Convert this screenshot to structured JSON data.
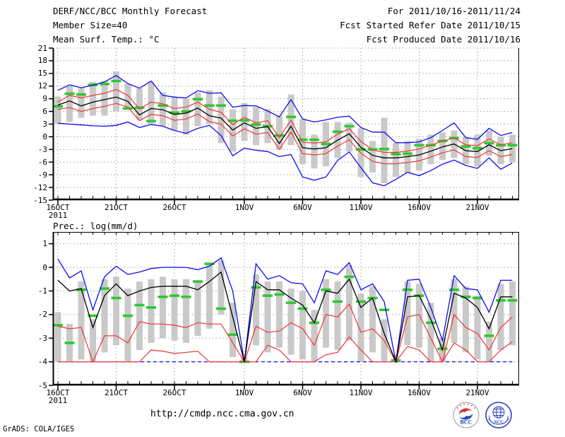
{
  "header": {
    "left": [
      "DERF/NCC/BCC Monthly Forecast",
      "Member Size=40"
    ],
    "right": [
      "For 2011/10/16-2011/11/24",
      "Fcst Started Refer Date 2011/10/15",
      "Fcst Produced Date 2011/10/16"
    ]
  },
  "footer": {
    "url": "http://cmdp.ncc.cma.gov.cn",
    "credit": "GrADS: COLA/IGES",
    "bcc_label": "BCC",
    "ncc_label": "NCC"
  },
  "colors": {
    "blue": "#0d0df0",
    "red": "#f23535",
    "green": "#2fc82f",
    "black": "#000000",
    "bar": "#c9c9c9",
    "grid": "#9b9b9b"
  },
  "chart_data": [
    {
      "type": "line",
      "title": "Mean Surf. Temp.: °C",
      "ylim": [
        -15,
        21
      ],
      "grid": "dotted",
      "yticks": [
        "21",
        "18",
        "15",
        "12",
        "9",
        "6",
        "3",
        "0",
        "-3",
        "-6",
        "-9",
        "-12",
        "-15"
      ],
      "xticks": [
        {
          "label": "16OCT",
          "sub": "2011",
          "day": 1
        },
        {
          "label": "21OCT",
          "day": 6
        },
        {
          "label": "26OCT",
          "day": 11
        },
        {
          "label": "1NOV",
          "day": 17
        },
        {
          "label": "6NOV",
          "day": 22
        },
        {
          "label": "11NOV",
          "day": 27
        },
        {
          "label": "16NOV",
          "day": 32
        },
        {
          "label": "21NOV",
          "day": 37
        }
      ],
      "n_days": 40,
      "series": {
        "blue_upper": [
          11.0,
          12.3,
          11.6,
          12.2,
          13.0,
          14.5,
          12.6,
          11.5,
          13.2,
          9.8,
          9.4,
          9.2,
          10.9,
          10.3,
          10.4,
          7.0,
          7.4,
          7.3,
          6.1,
          4.7,
          8.8,
          4.2,
          3.5,
          4.0,
          4.6,
          4.9,
          2.2,
          1.1,
          1.1,
          -1.4,
          -1.4,
          -1.2,
          -0.2,
          1.5,
          3.3,
          -0.2,
          -0.6,
          2.0,
          0.3,
          1.0
        ],
        "red_upper": [
          8.2,
          9.8,
          9.2,
          9.8,
          10.3,
          11.2,
          9.8,
          6.6,
          8.2,
          7.8,
          6.7,
          7.0,
          8.2,
          6.5,
          5.8,
          2.9,
          4.6,
          3.3,
          3.8,
          -0.2,
          3.9,
          -1.3,
          -1.5,
          -1.2,
          0.6,
          1.9,
          -1.1,
          -3.1,
          -3.7,
          -3.7,
          -3.4,
          -2.9,
          -2.0,
          -1.0,
          -0.3,
          -1.9,
          -2.1,
          -0.5,
          -1.9,
          -1.4
        ],
        "mean_black": [
          7.5,
          8.5,
          7.3,
          8.2,
          8.8,
          9.4,
          8.4,
          5.2,
          6.7,
          6.4,
          5.3,
          5.6,
          6.8,
          5.0,
          4.4,
          1.6,
          3.3,
          2.0,
          2.4,
          -1.6,
          2.5,
          -2.6,
          -2.9,
          -2.6,
          -0.8,
          0.7,
          -2.5,
          -4.4,
          -5.0,
          -5.0,
          -4.7,
          -4.3,
          -3.4,
          -2.4,
          -1.7,
          -3.3,
          -3.5,
          -1.9,
          -3.3,
          -2.8
        ],
        "red_lower": [
          6.5,
          6.9,
          6.0,
          6.7,
          7.2,
          7.9,
          7.0,
          3.8,
          5.3,
          5.0,
          3.9,
          4.2,
          5.4,
          3.6,
          3.0,
          0.2,
          1.9,
          0.6,
          1.0,
          -3.0,
          1.1,
          -4.0,
          -4.3,
          -4.0,
          -2.2,
          -0.7,
          -3.9,
          -5.8,
          -6.4,
          -6.4,
          -6.1,
          -5.7,
          -4.8,
          -3.8,
          -3.1,
          -4.7,
          -4.9,
          -3.3,
          -4.7,
          -4.2
        ],
        "blue_lower": [
          3.2,
          3.0,
          2.8,
          2.6,
          2.5,
          2.7,
          3.5,
          2.2,
          2.9,
          2.5,
          1.5,
          0.8,
          2.0,
          2.7,
          0.3,
          -4.5,
          -2.7,
          -3.2,
          -3.5,
          -4.7,
          -4.2,
          -9.5,
          -10.3,
          -9.5,
          -5.6,
          -3.6,
          -7.3,
          -10.9,
          -11.6,
          -10.1,
          -8.4,
          -9.2,
          -8.0,
          -6.5,
          -5.5,
          -6.8,
          -7.5,
          -5.0,
          -7.7,
          -6.2
        ],
        "green_marks": [
          7.2,
          10.2,
          10.0,
          12.3,
          12.5,
          13.2,
          6.7,
          6.9,
          3.7,
          7.4,
          5.7,
          6.0,
          8.9,
          7.4,
          7.4,
          3.8,
          3.9,
          2.9,
          2.5,
          0.3,
          4.7,
          -0.7,
          -0.7,
          -1.7,
          1.2,
          2.5,
          -3.0,
          -3.0,
          -2.9,
          -4.1,
          -4.0,
          -2.0,
          -2.0,
          -1.0,
          -0.3,
          -2.3,
          -2.7,
          -1.5,
          -2.0,
          -2.0
        ],
        "bar_high": [
          9.5,
          12.0,
          11.5,
          13.0,
          13.2,
          15.5,
          12.5,
          11.5,
          13.0,
          10.5,
          9.5,
          9.0,
          10.5,
          11.0,
          9.5,
          6.5,
          8.0,
          7.0,
          6.5,
          5.0,
          10.0,
          4.2,
          0.5,
          3.5,
          3.5,
          3.3,
          2.0,
          -1.0,
          4.5,
          -1.5,
          -1.0,
          -0.5,
          0.5,
          1.0,
          1.5,
          0.0,
          0.5,
          1.5,
          0.0,
          0.5
        ],
        "bar_low": [
          3.0,
          3.5,
          4.5,
          5.0,
          5.0,
          6.0,
          6.5,
          4.0,
          3.0,
          2.5,
          1.5,
          0.5,
          2.5,
          3.0,
          -1.5,
          -3.5,
          -1.0,
          -2.0,
          -1.5,
          -3.0,
          -2.0,
          -6.5,
          -7.5,
          -7.0,
          -5.0,
          -3.5,
          -9.5,
          -8.5,
          -11.0,
          -9.5,
          -8.5,
          -8.0,
          -6.5,
          -5.5,
          -5.0,
          -6.5,
          -7.0,
          -4.5,
          -6.5,
          -6.0
        ]
      }
    },
    {
      "type": "line",
      "title": "Prec.: log(mm/d)",
      "ylim": [
        -5,
        1.5
      ],
      "grid": "dotted",
      "yticks": [
        "1",
        "0",
        "-1",
        "-2",
        "-3",
        "-4",
        "-5"
      ],
      "xticks": [
        {
          "label": "16OCT",
          "sub": "2011",
          "day": 1
        },
        {
          "label": "21OCT",
          "day": 6
        },
        {
          "label": "26OCT",
          "day": 11
        },
        {
          "label": "1NOV",
          "day": 17
        },
        {
          "label": "6NOV",
          "day": 22
        },
        {
          "label": "11NOV",
          "day": 27
        },
        {
          "label": "16NOV",
          "day": 32
        },
        {
          "label": "21NOV",
          "day": 37
        }
      ],
      "n_days": 40,
      "series": {
        "blue_upper": [
          0.35,
          -0.45,
          -0.15,
          -1.8,
          -0.4,
          0.05,
          -0.3,
          -0.2,
          -0.05,
          0.0,
          0.0,
          0.0,
          -0.1,
          0.05,
          0.4,
          -1.0,
          -4.0,
          0.15,
          -0.5,
          -0.35,
          -0.65,
          -0.7,
          -1.5,
          -0.15,
          -0.3,
          0.2,
          -0.95,
          -0.7,
          -1.45,
          -4.0,
          -0.55,
          -0.5,
          -1.7,
          -3.1,
          -0.35,
          -0.9,
          -0.95,
          -1.9,
          -0.55,
          -0.55
        ],
        "mean_black": [
          -0.55,
          -1.0,
          -0.9,
          -2.55,
          -1.2,
          -0.7,
          -1.2,
          -1.0,
          -0.85,
          -0.8,
          -0.8,
          -0.8,
          -0.95,
          -0.6,
          -0.2,
          -2.1,
          -4.0,
          -0.6,
          -0.95,
          -0.95,
          -1.3,
          -1.6,
          -2.35,
          -1.0,
          -1.1,
          -0.5,
          -1.7,
          -1.3,
          -2.8,
          -4.0,
          -1.25,
          -1.2,
          -2.2,
          -3.5,
          -1.1,
          -1.3,
          -1.7,
          -2.6,
          -1.25,
          -1.25
        ],
        "red_upper": [
          -2.5,
          -2.6,
          -2.55,
          -4.0,
          -2.9,
          -2.9,
          -3.2,
          -2.3,
          -2.4,
          -2.4,
          -2.45,
          -2.55,
          -2.35,
          -2.4,
          -2.4,
          -3.2,
          -4.0,
          -2.5,
          -2.75,
          -2.7,
          -2.35,
          -2.6,
          -3.3,
          -2.0,
          -2.1,
          -1.55,
          -2.75,
          -2.6,
          -3.1,
          -4.0,
          -2.1,
          -2.0,
          -3.0,
          -4.0,
          -2.0,
          -2.55,
          -2.8,
          -3.5,
          -2.55,
          -2.1
        ],
        "red_lower": [
          -4,
          -4,
          -4,
          -4,
          -4,
          -4,
          -4,
          -4,
          -3.5,
          -3.55,
          -3.65,
          -3.6,
          -3.55,
          -4,
          -4,
          -4,
          -4,
          -4,
          -3.3,
          -3.5,
          -4,
          -4,
          -4,
          -3.7,
          -3.6,
          -2.95,
          -3.5,
          -4,
          -4,
          -4,
          -3.35,
          -3.5,
          -4,
          -4,
          -3.2,
          -3.5,
          -4,
          -4,
          -3.5,
          -3.15
        ],
        "blue_lower": [
          -4,
          -4,
          -4,
          -4,
          -4,
          -4,
          -4,
          -4,
          -4,
          -4,
          -4,
          -4,
          -4,
          -4,
          -4,
          -4,
          -4,
          -4,
          -4,
          -4,
          -4,
          -4,
          -4,
          -4,
          -4,
          -4,
          -4,
          -4,
          -4,
          -4,
          -4,
          -4,
          -4,
          -4,
          -4,
          -4,
          -4,
          -4,
          -4,
          -4
        ],
        "green_marks": [
          -2.45,
          -3.2,
          -0.95,
          -2.05,
          -0.9,
          -1.3,
          -2.05,
          -1.6,
          -1.7,
          -1.25,
          -1.2,
          -1.25,
          -0.6,
          0.15,
          -1.75,
          -2.85,
          -4.0,
          -0.85,
          -1.2,
          -1.15,
          -1.5,
          -1.75,
          -2.35,
          -0.95,
          -1.45,
          -0.4,
          -1.45,
          -1.3,
          -1.8,
          -3.95,
          -0.95,
          -1.2,
          -2.35,
          -3.45,
          -0.95,
          -1.25,
          -1.3,
          -2.9,
          -1.4,
          -1.4
        ],
        "bar_high": [
          -1.9,
          -2.4,
          -0.6,
          -2.2,
          -0.5,
          -0.4,
          -0.9,
          -0.6,
          -0.5,
          -0.4,
          -0.5,
          -0.5,
          -0.6,
          0.1,
          0.3,
          -1.5,
          -3.8,
          -0.3,
          -0.6,
          -0.6,
          -0.9,
          -1.0,
          -1.8,
          -0.5,
          -0.6,
          0.1,
          -1.1,
          -0.8,
          -2.2,
          -3.7,
          -0.6,
          -0.7,
          -1.5,
          -3.0,
          -0.5,
          -0.8,
          -1.2,
          -2.3,
          -0.7,
          -0.6
        ],
        "bar_low": [
          -4,
          -4,
          -3.9,
          -4,
          -3.6,
          -3.3,
          -4,
          -3.5,
          -3.2,
          -3.0,
          -3.1,
          -3.2,
          -2.9,
          -2.6,
          -2.0,
          -3.8,
          -4,
          -3.3,
          -3.6,
          -3.4,
          -3.7,
          -3.9,
          -4,
          -3.4,
          -3.5,
          -3.1,
          -4,
          -3.6,
          -4,
          -4,
          -3.3,
          -3.4,
          -4,
          -4,
          -3.2,
          -3.6,
          -3.9,
          -4,
          -3.5,
          -3.3
        ]
      }
    }
  ]
}
